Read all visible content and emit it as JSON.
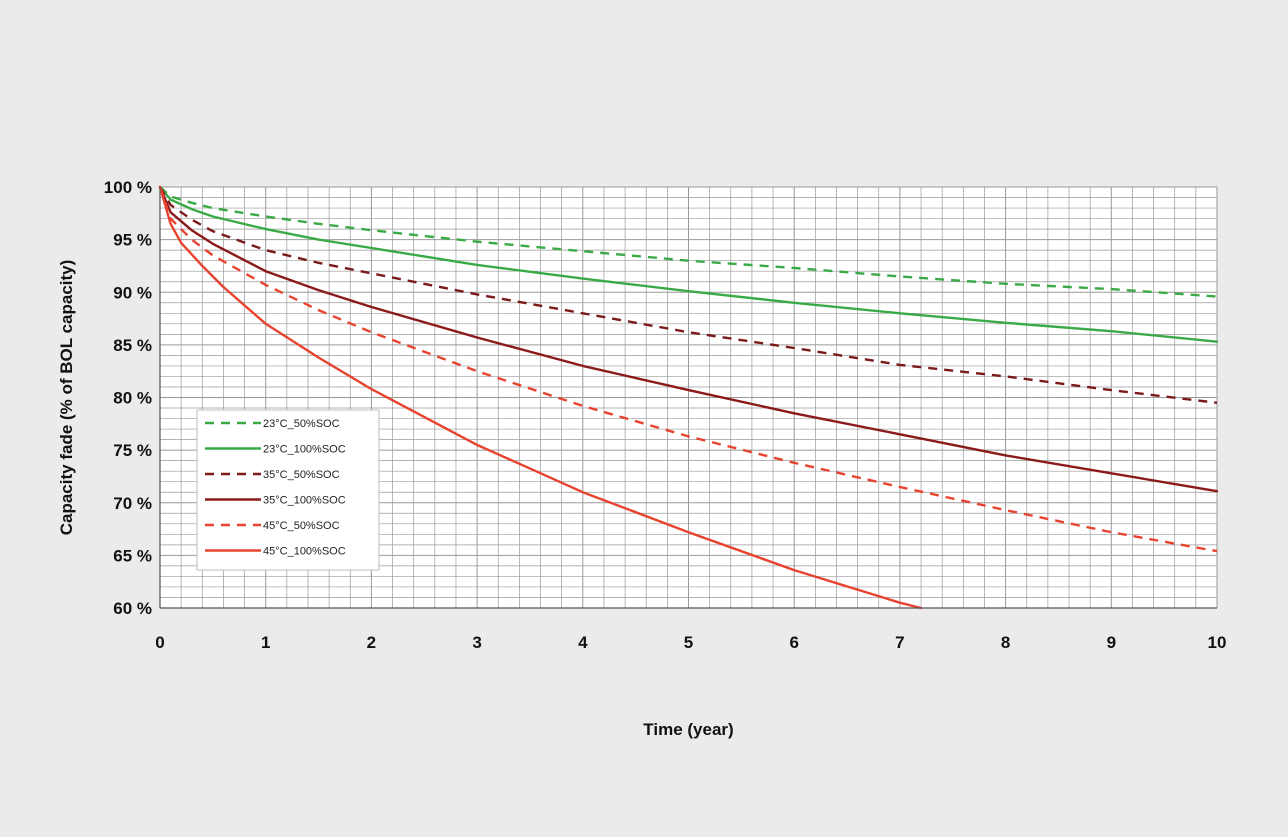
{
  "chart_data": {
    "type": "line",
    "title": "",
    "xlabel": "Time (year)",
    "ylabel": "Capacity fade (% of BOL capacity)",
    "xlim": [
      0,
      10
    ],
    "ylim": [
      60,
      100
    ],
    "x_ticks": [
      "0",
      "1",
      "2",
      "3",
      "4",
      "5",
      "6",
      "7",
      "8",
      "9",
      "10"
    ],
    "y_ticks": [
      "60 %",
      "65 %",
      "70 %",
      "75 %",
      "80 %",
      "85 %",
      "90 %",
      "95 %",
      "100 %"
    ],
    "grid": true,
    "legend_position": "bottom-left",
    "series": [
      {
        "name": "23°C_50%SOC",
        "color": "#3aaa47",
        "dash": true,
        "x": [
          0,
          0.1,
          0.3,
          0.5,
          1,
          1.5,
          2,
          3,
          4,
          5,
          6,
          7,
          8,
          9,
          10
        ],
        "y": [
          100,
          99.1,
          98.5,
          98.0,
          97.2,
          96.5,
          95.9,
          94.8,
          93.9,
          93.0,
          92.3,
          91.5,
          90.8,
          90.3,
          89.6
        ]
      },
      {
        "name": "23°C_100%SOC",
        "color": "#3aaa47",
        "dash": false,
        "x": [
          0,
          0.1,
          0.3,
          0.5,
          1,
          1.5,
          2,
          3,
          4,
          5,
          6,
          7,
          8,
          9,
          10
        ],
        "y": [
          100,
          98.8,
          97.9,
          97.2,
          96.0,
          95.0,
          94.2,
          92.6,
          91.3,
          90.1,
          89.0,
          88.0,
          87.1,
          86.3,
          85.3
        ]
      },
      {
        "name": "35°C_50%SOC",
        "color": "#7a1a1a",
        "dash": true,
        "x": [
          0,
          0.1,
          0.3,
          0.5,
          1,
          1.5,
          2,
          3,
          4,
          5,
          6,
          7,
          8,
          9,
          10
        ],
        "y": [
          100,
          98.3,
          96.9,
          95.8,
          94.0,
          92.8,
          91.8,
          89.8,
          88.0,
          86.2,
          84.7,
          83.1,
          82.0,
          80.7,
          79.5
        ]
      },
      {
        "name": "35°C_100%SOC",
        "color": "#8b1a1a",
        "dash": false,
        "x": [
          0,
          0.1,
          0.3,
          0.5,
          1,
          1.5,
          2,
          3,
          4,
          5,
          6,
          7,
          8,
          9,
          10
        ],
        "y": [
          100,
          97.6,
          95.9,
          94.6,
          92.0,
          90.2,
          88.6,
          85.7,
          83.0,
          80.7,
          78.5,
          76.5,
          74.5,
          72.8,
          71.1
        ]
      },
      {
        "name": "45°C_50%SOC",
        "color": "#e8432f",
        "dash": true,
        "x": [
          0,
          0.1,
          0.3,
          0.5,
          1,
          1.5,
          2,
          3,
          4,
          5,
          6,
          7,
          8,
          9,
          10
        ],
        "y": [
          100,
          97.0,
          95.0,
          93.5,
          90.7,
          88.3,
          86.2,
          82.5,
          79.2,
          76.3,
          73.8,
          71.5,
          69.3,
          67.2,
          65.4
        ]
      },
      {
        "name": "45°C_100%SOC",
        "color": "#e8432f",
        "dash": false,
        "x": [
          0,
          0.1,
          0.2,
          0.4,
          0.6,
          1,
          1.5,
          2,
          3,
          4,
          5,
          6,
          7,
          7.2
        ],
        "y": [
          100,
          96.5,
          94.7,
          92.5,
          90.5,
          87.0,
          83.8,
          80.8,
          75.5,
          71.0,
          67.2,
          63.6,
          60.5,
          60.0
        ]
      }
    ]
  }
}
